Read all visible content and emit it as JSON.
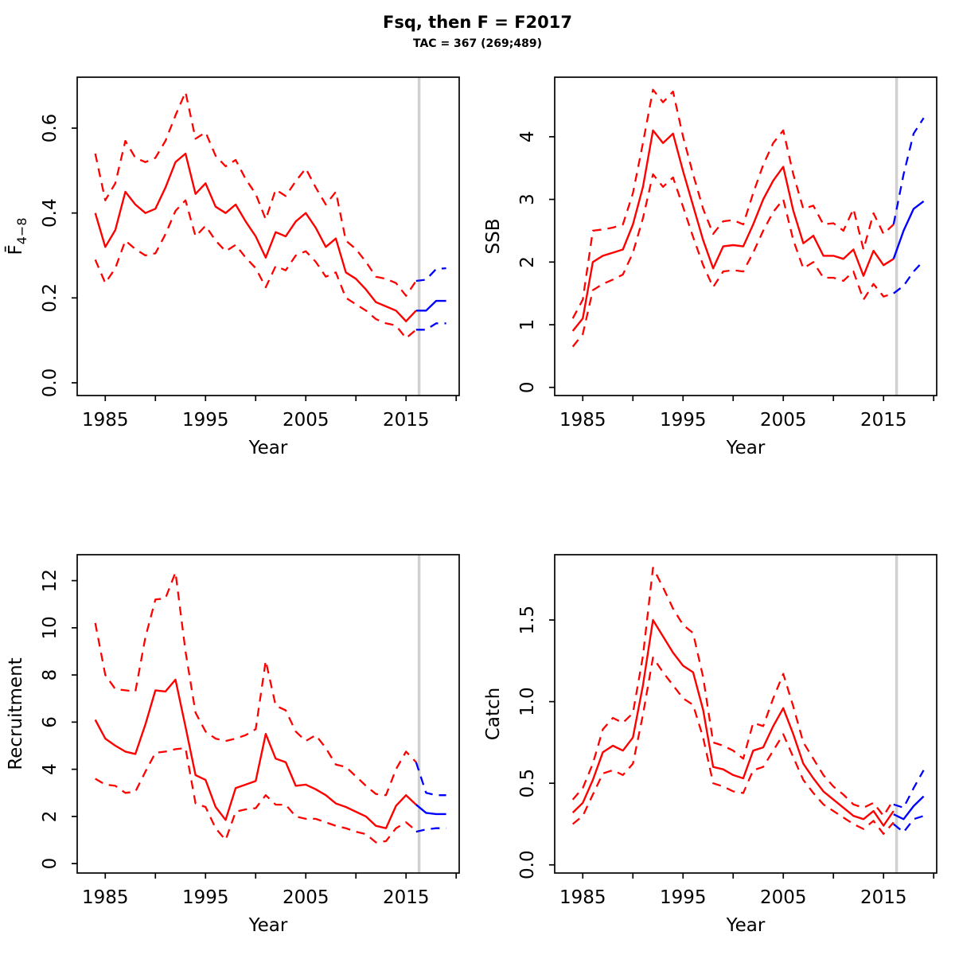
{
  "figure": {
    "title": "Fsq, then F = F2017",
    "subtitle": "TAC = 367 (269;489)"
  },
  "colors": {
    "historical": "#ff0000",
    "forecast": "#0000ff",
    "divider": "#d0d0d0",
    "axis": "#000000",
    "background": "#ffffff"
  },
  "chart_data": {
    "type": "line",
    "xlabel": "Year",
    "xlim": [
      1982.2,
      2020.3
    ],
    "xticks": [
      1985,
      1990,
      1995,
      2000,
      2005,
      2010,
      2015,
      2020
    ],
    "xtick_labels": [
      "1985",
      "",
      "1995",
      "",
      "2005",
      "",
      "2015",
      ""
    ],
    "forecast_divider_year": 2016.3,
    "legend": "none",
    "grid": "off",
    "years_historical": [
      1984,
      1985,
      1986,
      1987,
      1988,
      1989,
      1990,
      1991,
      1992,
      1993,
      1994,
      1995,
      1996,
      1997,
      1998,
      1999,
      2000,
      2001,
      2002,
      2003,
      2004,
      2005,
      2006,
      2007,
      2008,
      2009,
      2010,
      2011,
      2012,
      2013,
      2014,
      2015,
      2016
    ],
    "years_forecast": [
      2016,
      2017,
      2018,
      2019
    ],
    "panels": [
      {
        "id": "fbar",
        "ylabel": "F̄",
        "ylabel_sub": "4−8",
        "ylim": [
          -0.03,
          0.72
        ],
        "yticks": [
          0,
          0.2,
          0.4,
          0.6
        ],
        "ytick_labels": [
          "0.0",
          "0.2",
          "0.4",
          "0.6"
        ],
        "median_historical": [
          0.4,
          0.32,
          0.36,
          0.45,
          0.42,
          0.4,
          0.41,
          0.46,
          0.52,
          0.54,
          0.445,
          0.47,
          0.415,
          0.4,
          0.42,
          0.38,
          0.345,
          0.295,
          0.355,
          0.345,
          0.38,
          0.4,
          0.365,
          0.32,
          0.34,
          0.26,
          0.245,
          0.22,
          0.19,
          0.18,
          0.17,
          0.145,
          0.17
        ],
        "ci_upper_historical": [
          0.54,
          0.43,
          0.47,
          0.57,
          0.53,
          0.52,
          0.53,
          0.57,
          0.63,
          0.685,
          0.575,
          0.59,
          0.535,
          0.51,
          0.525,
          0.48,
          0.445,
          0.385,
          0.455,
          0.44,
          0.475,
          0.505,
          0.46,
          0.42,
          0.45,
          0.335,
          0.315,
          0.285,
          0.25,
          0.245,
          0.235,
          0.205,
          0.24
        ],
        "ci_lower_historical": [
          0.29,
          0.235,
          0.27,
          0.335,
          0.315,
          0.3,
          0.305,
          0.35,
          0.405,
          0.43,
          0.345,
          0.37,
          0.335,
          0.31,
          0.325,
          0.295,
          0.27,
          0.225,
          0.275,
          0.265,
          0.3,
          0.31,
          0.285,
          0.25,
          0.26,
          0.2,
          0.185,
          0.17,
          0.15,
          0.14,
          0.135,
          0.105,
          0.125
        ],
        "median_forecast": [
          0.17,
          0.17,
          0.193,
          0.193
        ],
        "ci_upper_forecast": [
          0.24,
          0.243,
          0.268,
          0.27
        ],
        "ci_lower_forecast": [
          0.125,
          0.125,
          0.14,
          0.14
        ]
      },
      {
        "id": "ssb",
        "ylabel": "SSB",
        "ylabel_sub": "",
        "ylim": [
          -0.13,
          4.95
        ],
        "yticks": [
          0,
          1,
          2,
          3,
          4
        ],
        "ytick_labels": [
          "0",
          "1",
          "2",
          "3",
          "4"
        ],
        "median_historical": [
          0.9,
          1.1,
          2.0,
          2.1,
          2.15,
          2.2,
          2.6,
          3.2,
          4.1,
          3.9,
          4.05,
          3.45,
          2.9,
          2.35,
          1.9,
          2.25,
          2.27,
          2.25,
          2.6,
          3.0,
          3.3,
          3.52,
          2.82,
          2.3,
          2.42,
          2.1,
          2.1,
          2.05,
          2.2,
          1.78,
          2.18,
          1.95,
          2.05
        ],
        "ci_upper_historical": [
          1.1,
          1.4,
          2.5,
          2.52,
          2.55,
          2.6,
          3.1,
          3.9,
          4.75,
          4.55,
          4.72,
          4.0,
          3.4,
          2.85,
          2.45,
          2.65,
          2.67,
          2.6,
          3.1,
          3.55,
          3.9,
          4.1,
          3.4,
          2.85,
          2.9,
          2.6,
          2.62,
          2.5,
          2.85,
          2.2,
          2.78,
          2.45,
          2.6
        ],
        "ci_lower_historical": [
          0.65,
          0.85,
          1.55,
          1.65,
          1.72,
          1.8,
          2.15,
          2.7,
          3.4,
          3.2,
          3.35,
          2.88,
          2.4,
          1.95,
          1.6,
          1.85,
          1.87,
          1.85,
          2.15,
          2.5,
          2.8,
          3.0,
          2.35,
          1.9,
          2.0,
          1.75,
          1.75,
          1.7,
          1.85,
          1.4,
          1.65,
          1.45,
          1.5
        ],
        "median_forecast": [
          2.05,
          2.5,
          2.85,
          2.97
        ],
        "ci_upper_forecast": [
          2.6,
          3.4,
          4.05,
          4.3
        ],
        "ci_lower_forecast": [
          1.5,
          1.62,
          1.85,
          2.02
        ]
      },
      {
        "id": "recruitment",
        "ylabel": "Recruitment",
        "ylabel_sub": "",
        "ylim": [
          -0.4,
          13.1
        ],
        "yticks": [
          0,
          2,
          4,
          6,
          8,
          10,
          12
        ],
        "ytick_labels": [
          "0",
          "2",
          "4",
          "6",
          "8",
          "10",
          "12"
        ],
        "median_historical": [
          6.1,
          5.3,
          5.0,
          4.75,
          4.65,
          5.9,
          7.35,
          7.3,
          7.8,
          5.8,
          3.75,
          3.55,
          2.4,
          1.85,
          3.2,
          3.35,
          3.5,
          5.5,
          4.45,
          4.3,
          3.3,
          3.35,
          3.15,
          2.9,
          2.55,
          2.4,
          2.2,
          2.0,
          1.6,
          1.5,
          2.45,
          2.9,
          2.5
        ],
        "ci_upper_historical": [
          10.2,
          8.0,
          7.4,
          7.35,
          7.3,
          9.6,
          11.2,
          11.25,
          12.35,
          9.0,
          6.4,
          5.6,
          5.3,
          5.2,
          5.3,
          5.45,
          5.7,
          8.6,
          6.7,
          6.5,
          5.6,
          5.2,
          5.45,
          4.9,
          4.2,
          4.1,
          3.7,
          3.3,
          2.95,
          2.9,
          4.0,
          4.75,
          4.3
        ],
        "ci_lower_historical": [
          3.6,
          3.35,
          3.3,
          3.0,
          3.05,
          3.9,
          4.7,
          4.75,
          4.85,
          4.9,
          2.55,
          2.4,
          1.5,
          1.0,
          2.2,
          2.3,
          2.35,
          2.9,
          2.5,
          2.5,
          2.0,
          1.9,
          1.9,
          1.75,
          1.6,
          1.5,
          1.35,
          1.25,
          0.9,
          0.95,
          1.5,
          1.75,
          1.4
        ],
        "median_forecast": [
          2.5,
          2.15,
          2.1,
          2.1
        ],
        "ci_upper_forecast": [
          4.3,
          3.0,
          2.9,
          2.9
        ],
        "ci_lower_forecast": [
          1.35,
          1.45,
          1.5,
          1.5
        ]
      },
      {
        "id": "catch",
        "ylabel": "Catch",
        "ylabel_sub": "",
        "ylim": [
          -0.05,
          1.9
        ],
        "yticks": [
          0,
          0.5,
          1.0,
          1.5
        ],
        "ytick_labels": [
          "0.0",
          "0.5",
          "1.0",
          "1.5"
        ],
        "median_historical": [
          0.32,
          0.38,
          0.52,
          0.69,
          0.73,
          0.7,
          0.78,
          1.1,
          1.5,
          1.4,
          1.3,
          1.22,
          1.18,
          0.95,
          0.6,
          0.585,
          0.55,
          0.53,
          0.7,
          0.72,
          0.85,
          0.96,
          0.8,
          0.62,
          0.53,
          0.45,
          0.4,
          0.35,
          0.3,
          0.28,
          0.33,
          0.24,
          0.33
        ],
        "ci_upper_historical": [
          0.4,
          0.47,
          0.62,
          0.83,
          0.9,
          0.87,
          0.93,
          1.28,
          1.82,
          1.7,
          1.57,
          1.47,
          1.42,
          1.15,
          0.75,
          0.73,
          0.7,
          0.65,
          0.87,
          0.85,
          1.02,
          1.17,
          0.97,
          0.75,
          0.65,
          0.55,
          0.48,
          0.43,
          0.37,
          0.35,
          0.38,
          0.3,
          0.4
        ],
        "ci_lower_historical": [
          0.25,
          0.3,
          0.43,
          0.56,
          0.58,
          0.55,
          0.62,
          0.92,
          1.27,
          1.18,
          1.1,
          1.02,
          0.98,
          0.78,
          0.5,
          0.48,
          0.45,
          0.44,
          0.58,
          0.6,
          0.7,
          0.8,
          0.66,
          0.52,
          0.44,
          0.37,
          0.33,
          0.29,
          0.25,
          0.22,
          0.27,
          0.19,
          0.26
        ],
        "median_forecast": [
          0.31,
          0.28,
          0.36,
          0.42
        ],
        "ci_upper_forecast": [
          0.37,
          0.35,
          0.47,
          0.58
        ],
        "ci_lower_forecast": [
          0.25,
          0.2,
          0.28,
          0.3
        ]
      }
    ]
  }
}
